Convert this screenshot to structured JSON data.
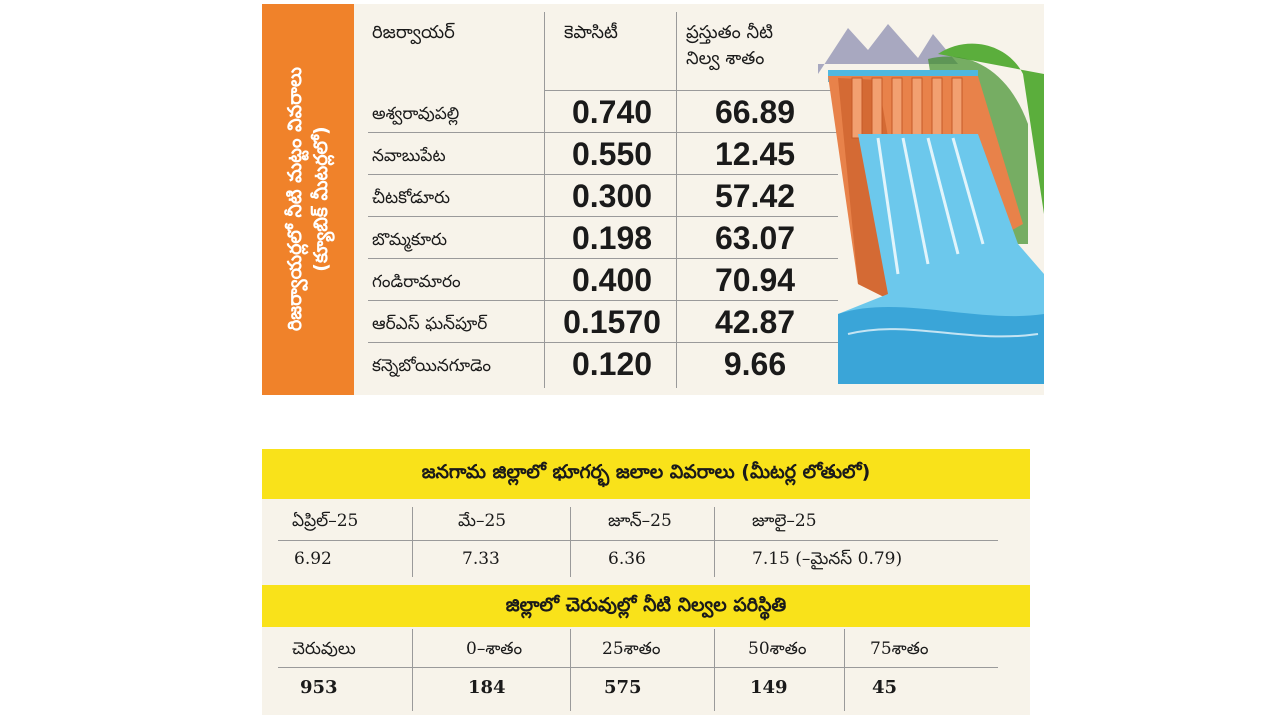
{
  "reservoirs": {
    "side_title_line1": "రిజర్వాయర్లలో నీటి మట్టం వివరాలు",
    "side_title_line2": "(క్యూబిక్ మీటర్లలో)",
    "headers": {
      "name": "రిజర్వాయర్",
      "capacity": "కెపాసిటీ",
      "current_line1": "ప్రస్తుతం నీటి",
      "current_line2": "నిల్వ శాతం"
    },
    "rows": [
      {
        "name": "అశ్వరావుపల్లి",
        "capacity": "0.740",
        "percent": "66.89"
      },
      {
        "name": "నవాబుపేట",
        "capacity": "0.550",
        "percent": "12.45"
      },
      {
        "name": "చీటకోడూరు",
        "capacity": "0.300",
        "percent": "57.42"
      },
      {
        "name": "బొమ్మకూరు",
        "capacity": "0.198",
        "percent": "63.07"
      },
      {
        "name": "గండిరామారం",
        "capacity": "0.400",
        "percent": "70.94"
      },
      {
        "name": "ఆర్ఎస్ ఘన్‌పూర్",
        "capacity": "0.1570",
        "percent": "42.87"
      },
      {
        "name": "కన్నెబోయినగూడెం",
        "capacity": "0.120",
        "percent": "9.66"
      }
    ],
    "colors": {
      "side_band": "#f0822a",
      "water": "#4fb8e0",
      "dam": "#e8824a"
    }
  },
  "groundwater": {
    "title": "జనగామ జిల్లాలో భూగర్భ జలాల వివరాలు (మీటర్ల లోతులో)",
    "months": [
      "ఏప్రిల్–25",
      "మే–25",
      "జూన్–25",
      "జూలై–25"
    ],
    "values": [
      "6.92",
      "7.33",
      "6.36",
      "7.15 (–మైనస్ 0.79)"
    ]
  },
  "ponds": {
    "title": "జిల్లాలో చెరువుల్లో నీటి నిల్వల పరిస్థితి",
    "headers": [
      "చెరువులు",
      "0–శాతం",
      "25శాతం",
      "50శాతం",
      "75శాతం"
    ],
    "values": [
      "953",
      "184",
      "575",
      "149",
      "45"
    ],
    "band_color": "#f9e21a"
  }
}
